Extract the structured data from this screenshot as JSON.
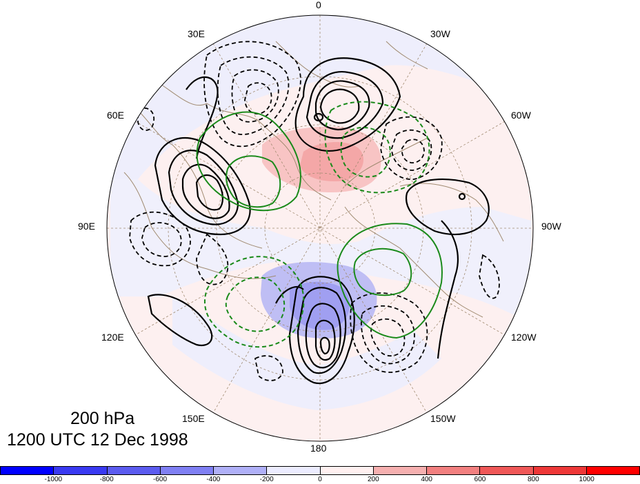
{
  "map": {
    "level_label": "200 hPa",
    "time_label": "1200 UTC 12 Dec 1998",
    "longitude_labels": [
      {
        "id": "0",
        "text": "0"
      },
      {
        "id": "30E",
        "text": "30E"
      },
      {
        "id": "30W",
        "text": "30W"
      },
      {
        "id": "60E",
        "text": "60E"
      },
      {
        "id": "60W",
        "text": "60W"
      },
      {
        "id": "90E",
        "text": "90E"
      },
      {
        "id": "90W",
        "text": "90W"
      },
      {
        "id": "120E",
        "text": "120E"
      },
      {
        "id": "120W",
        "text": "120W"
      },
      {
        "id": "150E",
        "text": "150E"
      },
      {
        "id": "150W",
        "text": "150W"
      },
      {
        "id": "180",
        "text": "180"
      }
    ],
    "colors": {
      "solid_contour": "#000000",
      "dashed_contour": "#000000",
      "green_contour": "#1a8a1a",
      "coastline": "#a08a70",
      "graticule": "#a08a70"
    }
  },
  "colorbar": {
    "ticks": [
      "-1000",
      "-800",
      "-600",
      "-400",
      "-200",
      "0",
      "200",
      "400",
      "600",
      "800",
      "1000"
    ],
    "colors": [
      "#0000ff",
      "#3a3af2",
      "#5c5cf0",
      "#8080f4",
      "#b0b0f8",
      "#ececff",
      "#fff0f0",
      "#f6b0b0",
      "#f28080",
      "#f05858",
      "#ee3838",
      "#ff0000"
    ]
  }
}
